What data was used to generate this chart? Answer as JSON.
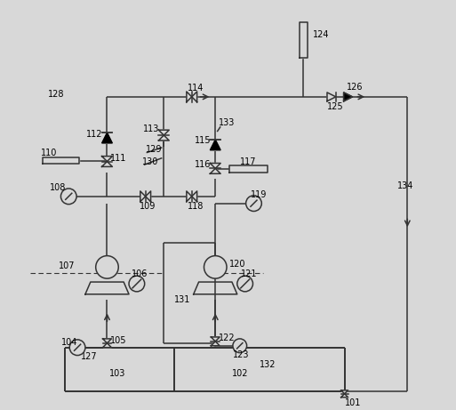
{
  "bg": "#d8d8d8",
  "lc": "#333333",
  "lw": 1.1,
  "fw": 5.13,
  "fh": 4.61,
  "dpi": 100,
  "fs": 7
}
